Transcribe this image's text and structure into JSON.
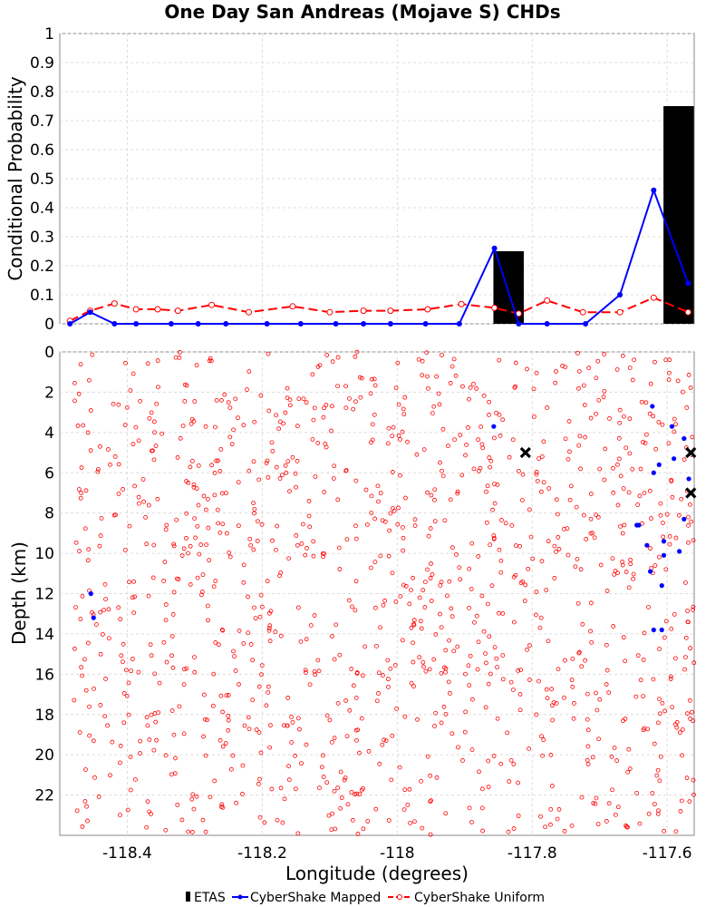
{
  "chart_data": {
    "title": "One Day San Andreas (Mojave S) CHDs",
    "xlabel": "Longitude (degrees)",
    "x_ticks": [
      -118.4,
      -118.2,
      -118,
      -117.8,
      -117.6
    ],
    "x_tick_labels": [
      "-118.4",
      "-118.2",
      "-118",
      "-117.8",
      "-117.6"
    ],
    "xlim": [
      -118.5,
      -117.56
    ],
    "legend": {
      "items": [
        {
          "name": "ETAS",
          "kind": "bar"
        },
        {
          "name": "CyberShake Mapped",
          "kind": "line-filled"
        },
        {
          "name": "CyberShake Uniform",
          "kind": "line-dashed-open"
        }
      ],
      "position": "bottom-center"
    },
    "colors": {
      "etas": "#000000",
      "mapped": "#0000ff",
      "uniform": "#ff0000"
    },
    "top_panel": {
      "type": "bar+line",
      "ylabel": "Conditional Probability",
      "ylim": [
        0,
        1
      ],
      "y_ticks": [
        0,
        0.1,
        0.2,
        0.3,
        0.4,
        0.5,
        0.6,
        0.7,
        0.8,
        0.9,
        1
      ],
      "y_tick_labels": [
        "0",
        "0.1",
        "0.2",
        "0.3",
        "0.4",
        "0.5",
        "0.6",
        "0.7",
        "0.8",
        "0.9",
        "1"
      ],
      "etas_bars": [
        {
          "x": -117.835,
          "value": 0.25
        },
        {
          "x": -117.583,
          "value": 0.75
        }
      ],
      "bar_width": 0.045,
      "mapped_series": {
        "name": "CyberShake Mapped",
        "x": [
          -118.485,
          -118.455,
          -118.419,
          -118.387,
          -118.335,
          -118.295,
          -118.254,
          -118.193,
          -118.143,
          -118.091,
          -118.05,
          -118.01,
          -117.958,
          -117.908,
          -117.856,
          -117.82,
          -117.778,
          -117.721,
          -117.67,
          -117.62,
          -117.569
        ],
        "y": [
          0.0,
          0.04,
          0.0,
          0.0,
          0.0,
          0.0,
          0.0,
          0.0,
          0.0,
          0.0,
          0.0,
          0.0,
          0.0,
          0.0,
          0.26,
          0.0,
          0.0,
          0.0,
          0.1,
          0.46,
          0.14
        ]
      },
      "uniform_series": {
        "name": "CyberShake Uniform",
        "x": [
          -118.485,
          -118.455,
          -118.419,
          -118.387,
          -118.355,
          -118.325,
          -118.275,
          -118.22,
          -118.155,
          -118.1,
          -118.05,
          -118.01,
          -117.955,
          -117.905,
          -117.856,
          -117.82,
          -117.778,
          -117.725,
          -117.67,
          -117.62,
          -117.569
        ],
        "y": [
          0.01,
          0.045,
          0.07,
          0.05,
          0.05,
          0.045,
          0.065,
          0.04,
          0.06,
          0.04,
          0.045,
          0.045,
          0.05,
          0.068,
          0.055,
          0.035,
          0.08,
          0.04,
          0.04,
          0.09,
          0.04
        ]
      }
    },
    "bottom_panel": {
      "type": "scatter",
      "ylabel": "Depth (km)",
      "ylim": [
        0,
        24
      ],
      "y_inverted": true,
      "y_ticks": [
        0,
        2,
        4,
        6,
        8,
        10,
        12,
        14,
        16,
        18,
        20,
        22
      ],
      "y_tick_labels": [
        "0",
        "2",
        "4",
        "6",
        "8",
        "10",
        "12",
        "14",
        "16",
        "18",
        "20",
        "22"
      ],
      "uniform_points": {
        "count": 1200,
        "lon_range": [
          -118.48,
          -117.56
        ],
        "depth_range": [
          0,
          24
        ],
        "marker": "open-circle"
      },
      "mapped_points": {
        "marker": "filled-circle",
        "points": [
          [
            -118.454,
            12.0
          ],
          [
            -118.45,
            13.2
          ],
          [
            -117.857,
            3.7
          ],
          [
            -117.622,
            2.7
          ],
          [
            -117.593,
            3.7
          ],
          [
            -117.575,
            4.3
          ],
          [
            -117.612,
            5.6
          ],
          [
            -117.59,
            5.3
          ],
          [
            -117.62,
            6.0
          ],
          [
            -117.568,
            6.3
          ],
          [
            -117.575,
            8.3
          ],
          [
            -117.645,
            8.6
          ],
          [
            -117.642,
            8.6
          ],
          [
            -117.605,
            9.4
          ],
          [
            -117.63,
            9.6
          ],
          [
            -117.582,
            9.9
          ],
          [
            -117.605,
            10.1
          ],
          [
            -117.625,
            10.9
          ],
          [
            -117.608,
            11.6
          ],
          [
            -117.62,
            13.8
          ],
          [
            -117.608,
            13.8
          ]
        ]
      },
      "etas_markers": {
        "marker": "x",
        "points": [
          [
            -117.81,
            5.0
          ],
          [
            -117.565,
            5.0
          ],
          [
            -117.565,
            7.0
          ]
        ]
      }
    }
  }
}
